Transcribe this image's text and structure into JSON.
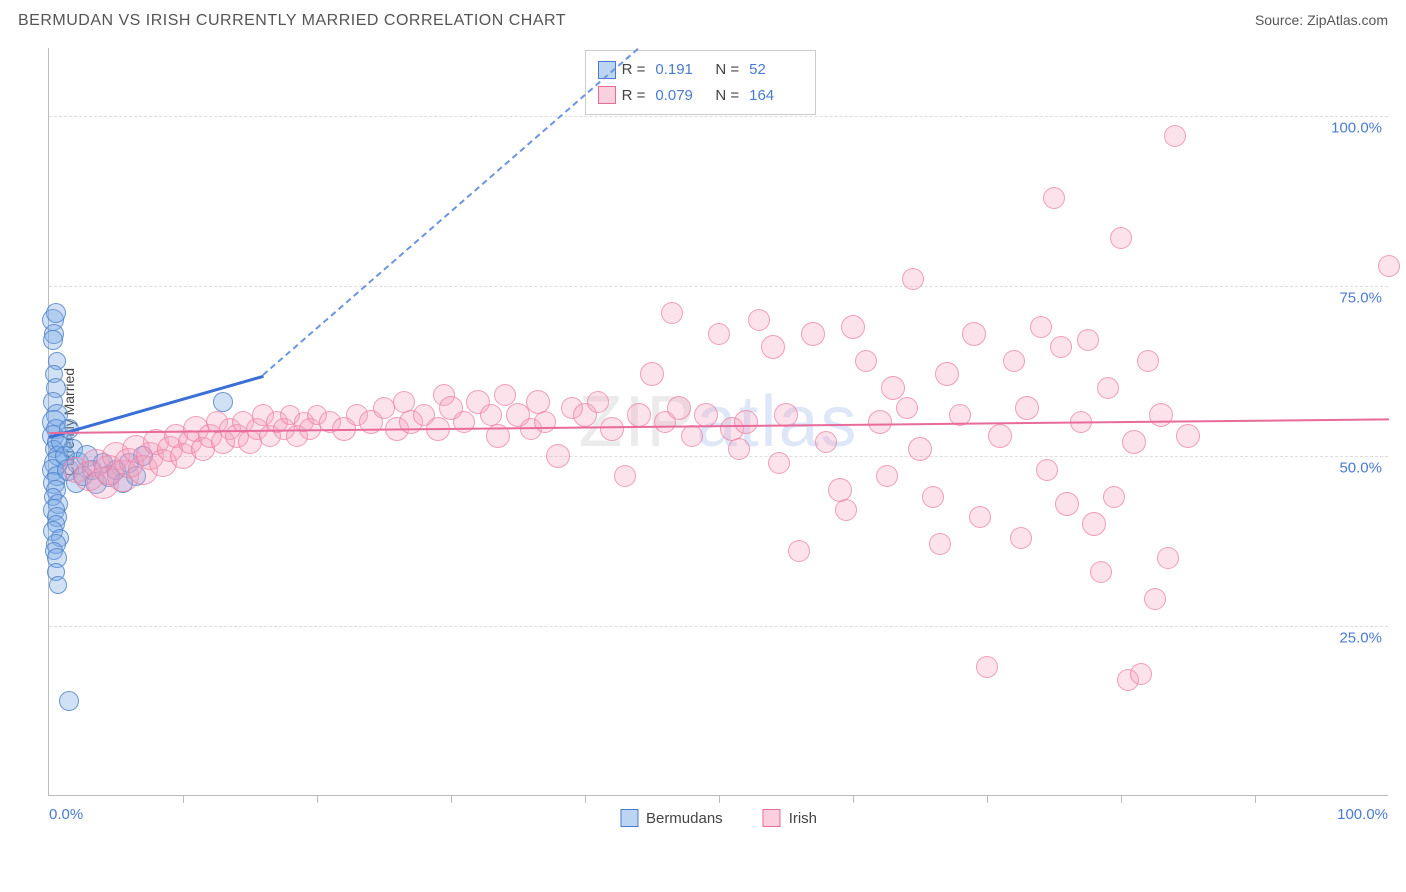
{
  "title": "BERMUDAN VS IRISH CURRENTLY MARRIED CORRELATION CHART",
  "source": "Source: ZipAtlas.com",
  "watermark_parts": [
    "ZIP",
    "atlas"
  ],
  "chart": {
    "type": "scatter",
    "background_color": "#ffffff",
    "grid_color": "#dddddd",
    "border_color": "#bbbbbb",
    "text_color": "#444444",
    "accent_color": "#4a7bd0",
    "title_fontsize": 16,
    "label_fontsize": 14,
    "tick_fontsize": 15,
    "ylabel": "Currently Married",
    "xlim": [
      0,
      100
    ],
    "ylim": [
      0,
      110
    ],
    "ytick_values": [
      25,
      50,
      75,
      100
    ],
    "ytick_labels": [
      "25.0%",
      "50.0%",
      "75.0%",
      "100.0%"
    ],
    "xtick_left": "0.0%",
    "xtick_right": "100.0%",
    "xtick_minor_count": 10,
    "legend_top": {
      "rows": [
        {
          "swatch": "blue",
          "R": "0.191",
          "N": "52"
        },
        {
          "swatch": "pink",
          "R": "0.079",
          "N": "164"
        }
      ]
    },
    "legend_bottom": [
      {
        "swatch": "blue",
        "label": "Bermudans"
      },
      {
        "swatch": "pink",
        "label": "Irish"
      }
    ],
    "series": [
      {
        "name": "Bermudans",
        "color_fill": "rgba(120,170,230,0.35)",
        "color_stroke": "rgba(80,130,200,0.8)",
        "marker_class": "blue",
        "trend_solid": {
          "x1": 0,
          "y1": 53,
          "x2": 16,
          "y2": 62,
          "color": "#3b6fd6",
          "width": 2.5
        },
        "trend_dash": {
          "x1": 16,
          "y1": 62,
          "x2": 44,
          "y2": 110,
          "color": "#6b95e0",
          "dash": true
        },
        "points": [
          {
            "x": 0.3,
            "y": 70,
            "r": 11
          },
          {
            "x": 0.5,
            "y": 71,
            "r": 10
          },
          {
            "x": 0.4,
            "y": 68,
            "r": 10
          },
          {
            "x": 0.3,
            "y": 67,
            "r": 10
          },
          {
            "x": 0.6,
            "y": 64,
            "r": 9
          },
          {
            "x": 0.4,
            "y": 62,
            "r": 9
          },
          {
            "x": 0.5,
            "y": 60,
            "r": 10
          },
          {
            "x": 0.3,
            "y": 58,
            "r": 10
          },
          {
            "x": 0.6,
            "y": 56,
            "r": 11
          },
          {
            "x": 0.4,
            "y": 55,
            "r": 12
          },
          {
            "x": 0.5,
            "y": 54,
            "r": 10
          },
          {
            "x": 0.3,
            "y": 53,
            "r": 11
          },
          {
            "x": 0.6,
            "y": 52,
            "r": 10
          },
          {
            "x": 0.4,
            "y": 51,
            "r": 9
          },
          {
            "x": 0.7,
            "y": 50,
            "r": 10
          },
          {
            "x": 0.5,
            "y": 49,
            "r": 12
          },
          {
            "x": 0.3,
            "y": 48,
            "r": 11
          },
          {
            "x": 0.6,
            "y": 47,
            "r": 10
          },
          {
            "x": 0.4,
            "y": 46,
            "r": 11
          },
          {
            "x": 0.5,
            "y": 45,
            "r": 10
          },
          {
            "x": 0.3,
            "y": 44,
            "r": 9
          },
          {
            "x": 0.7,
            "y": 43,
            "r": 10
          },
          {
            "x": 0.4,
            "y": 42,
            "r": 11
          },
          {
            "x": 0.6,
            "y": 41,
            "r": 10
          },
          {
            "x": 0.5,
            "y": 40,
            "r": 9
          },
          {
            "x": 0.3,
            "y": 39,
            "r": 10
          },
          {
            "x": 0.8,
            "y": 38,
            "r": 9
          },
          {
            "x": 0.5,
            "y": 37,
            "r": 10
          },
          {
            "x": 0.4,
            "y": 36,
            "r": 9
          },
          {
            "x": 0.6,
            "y": 35,
            "r": 10
          },
          {
            "x": 0.5,
            "y": 33,
            "r": 9
          },
          {
            "x": 0.7,
            "y": 31,
            "r": 9
          },
          {
            "x": 1.0,
            "y": 52,
            "r": 11
          },
          {
            "x": 1.2,
            "y": 50,
            "r": 10
          },
          {
            "x": 1.4,
            "y": 48,
            "r": 11
          },
          {
            "x": 1.5,
            "y": 54,
            "r": 10
          },
          {
            "x": 1.8,
            "y": 51,
            "r": 10
          },
          {
            "x": 2.0,
            "y": 46,
            "r": 10
          },
          {
            "x": 2.2,
            "y": 49,
            "r": 11
          },
          {
            "x": 2.5,
            "y": 47,
            "r": 10
          },
          {
            "x": 2.8,
            "y": 50,
            "r": 11
          },
          {
            "x": 3.2,
            "y": 48,
            "r": 10
          },
          {
            "x": 3.5,
            "y": 46,
            "r": 11
          },
          {
            "x": 4.0,
            "y": 49,
            "r": 10
          },
          {
            "x": 4.5,
            "y": 47,
            "r": 11
          },
          {
            "x": 5.0,
            "y": 48,
            "r": 10
          },
          {
            "x": 5.5,
            "y": 46,
            "r": 10
          },
          {
            "x": 6.0,
            "y": 49,
            "r": 10
          },
          {
            "x": 6.5,
            "y": 47,
            "r": 10
          },
          {
            "x": 7.0,
            "y": 50,
            "r": 10
          },
          {
            "x": 13.0,
            "y": 58,
            "r": 10
          },
          {
            "x": 1.5,
            "y": 14,
            "r": 10
          }
        ]
      },
      {
        "name": "Irish",
        "color_fill": "rgba(245,160,190,0.3)",
        "color_stroke": "rgba(235,120,160,0.65)",
        "marker_class": "pink",
        "trend_solid": {
          "x1": 0,
          "y1": 53.5,
          "x2": 100,
          "y2": 55.5,
          "color": "#e86b9a",
          "width": 2
        },
        "points": [
          {
            "x": 2,
            "y": 48,
            "r": 13
          },
          {
            "x": 3,
            "y": 47,
            "r": 15
          },
          {
            "x": 3.5,
            "y": 49,
            "r": 14
          },
          {
            "x": 4,
            "y": 46,
            "r": 16
          },
          {
            "x": 4.5,
            "y": 48,
            "r": 15
          },
          {
            "x": 5,
            "y": 50,
            "r": 14
          },
          {
            "x": 5.5,
            "y": 47,
            "r": 16
          },
          {
            "x": 6,
            "y": 49,
            "r": 15
          },
          {
            "x": 6.5,
            "y": 51,
            "r": 14
          },
          {
            "x": 7,
            "y": 48,
            "r": 15
          },
          {
            "x": 7.5,
            "y": 50,
            "r": 14
          },
          {
            "x": 8,
            "y": 52,
            "r": 13
          },
          {
            "x": 8.5,
            "y": 49,
            "r": 14
          },
          {
            "x": 9,
            "y": 51,
            "r": 13
          },
          {
            "x": 9.5,
            "y": 53,
            "r": 12
          },
          {
            "x": 10,
            "y": 50,
            "r": 13
          },
          {
            "x": 10.5,
            "y": 52,
            "r": 12
          },
          {
            "x": 11,
            "y": 54,
            "r": 13
          },
          {
            "x": 11.5,
            "y": 51,
            "r": 12
          },
          {
            "x": 12,
            "y": 53,
            "r": 12
          },
          {
            "x": 12.5,
            "y": 55,
            "r": 11
          },
          {
            "x": 13,
            "y": 52,
            "r": 12
          },
          {
            "x": 13.5,
            "y": 54,
            "r": 11
          },
          {
            "x": 14,
            "y": 53,
            "r": 12
          },
          {
            "x": 14.5,
            "y": 55,
            "r": 11
          },
          {
            "x": 15,
            "y": 52,
            "r": 12
          },
          {
            "x": 15.5,
            "y": 54,
            "r": 11
          },
          {
            "x": 16,
            "y": 56,
            "r": 11
          },
          {
            "x": 16.5,
            "y": 53,
            "r": 11
          },
          {
            "x": 17,
            "y": 55,
            "r": 11
          },
          {
            "x": 17.5,
            "y": 54,
            "r": 11
          },
          {
            "x": 18,
            "y": 56,
            "r": 10
          },
          {
            "x": 18.5,
            "y": 53,
            "r": 11
          },
          {
            "x": 19,
            "y": 55,
            "r": 10
          },
          {
            "x": 19.5,
            "y": 54,
            "r": 11
          },
          {
            "x": 20,
            "y": 56,
            "r": 10
          },
          {
            "x": 21,
            "y": 55,
            "r": 11
          },
          {
            "x": 22,
            "y": 54,
            "r": 12
          },
          {
            "x": 23,
            "y": 56,
            "r": 11
          },
          {
            "x": 24,
            "y": 55,
            "r": 12
          },
          {
            "x": 25,
            "y": 57,
            "r": 11
          },
          {
            "x": 26,
            "y": 54,
            "r": 12
          },
          {
            "x": 26.5,
            "y": 58,
            "r": 11
          },
          {
            "x": 27,
            "y": 55,
            "r": 12
          },
          {
            "x": 28,
            "y": 56,
            "r": 11
          },
          {
            "x": 29,
            "y": 54,
            "r": 12
          },
          {
            "x": 29.5,
            "y": 59,
            "r": 11
          },
          {
            "x": 30,
            "y": 57,
            "r": 12
          },
          {
            "x": 31,
            "y": 55,
            "r": 11
          },
          {
            "x": 32,
            "y": 58,
            "r": 12
          },
          {
            "x": 33,
            "y": 56,
            "r": 11
          },
          {
            "x": 33.5,
            "y": 53,
            "r": 12
          },
          {
            "x": 34,
            "y": 59,
            "r": 11
          },
          {
            "x": 35,
            "y": 56,
            "r": 12
          },
          {
            "x": 36,
            "y": 54,
            "r": 11
          },
          {
            "x": 36.5,
            "y": 58,
            "r": 12
          },
          {
            "x": 37,
            "y": 55,
            "r": 11
          },
          {
            "x": 38,
            "y": 50,
            "r": 12
          },
          {
            "x": 39,
            "y": 57,
            "r": 11
          },
          {
            "x": 40,
            "y": 56,
            "r": 12
          },
          {
            "x": 41,
            "y": 58,
            "r": 11
          },
          {
            "x": 42,
            "y": 54,
            "r": 12
          },
          {
            "x": 43,
            "y": 47,
            "r": 11
          },
          {
            "x": 44,
            "y": 56,
            "r": 12
          },
          {
            "x": 45,
            "y": 62,
            "r": 12
          },
          {
            "x": 46,
            "y": 55,
            "r": 11
          },
          {
            "x": 46.5,
            "y": 71,
            "r": 11
          },
          {
            "x": 47,
            "y": 57,
            "r": 12
          },
          {
            "x": 48,
            "y": 53,
            "r": 11
          },
          {
            "x": 49,
            "y": 56,
            "r": 12
          },
          {
            "x": 50,
            "y": 68,
            "r": 11
          },
          {
            "x": 51,
            "y": 54,
            "r": 12
          },
          {
            "x": 51.5,
            "y": 51,
            "r": 11
          },
          {
            "x": 52,
            "y": 55,
            "r": 12
          },
          {
            "x": 53,
            "y": 70,
            "r": 11
          },
          {
            "x": 54,
            "y": 66,
            "r": 12
          },
          {
            "x": 54.5,
            "y": 49,
            "r": 11
          },
          {
            "x": 55,
            "y": 56,
            "r": 12
          },
          {
            "x": 56,
            "y": 36,
            "r": 11
          },
          {
            "x": 57,
            "y": 68,
            "r": 12
          },
          {
            "x": 58,
            "y": 52,
            "r": 11
          },
          {
            "x": 59,
            "y": 45,
            "r": 12
          },
          {
            "x": 59.5,
            "y": 42,
            "r": 11
          },
          {
            "x": 60,
            "y": 69,
            "r": 12
          },
          {
            "x": 61,
            "y": 64,
            "r": 11
          },
          {
            "x": 62,
            "y": 55,
            "r": 12
          },
          {
            "x": 62.5,
            "y": 47,
            "r": 11
          },
          {
            "x": 63,
            "y": 60,
            "r": 12
          },
          {
            "x": 64,
            "y": 57,
            "r": 11
          },
          {
            "x": 64.5,
            "y": 76,
            "r": 11
          },
          {
            "x": 65,
            "y": 51,
            "r": 12
          },
          {
            "x": 66,
            "y": 44,
            "r": 11
          },
          {
            "x": 66.5,
            "y": 37,
            "r": 11
          },
          {
            "x": 67,
            "y": 62,
            "r": 12
          },
          {
            "x": 68,
            "y": 56,
            "r": 11
          },
          {
            "x": 69,
            "y": 68,
            "r": 12
          },
          {
            "x": 69.5,
            "y": 41,
            "r": 11
          },
          {
            "x": 70,
            "y": 19,
            "r": 11
          },
          {
            "x": 71,
            "y": 53,
            "r": 12
          },
          {
            "x": 72,
            "y": 64,
            "r": 11
          },
          {
            "x": 72.5,
            "y": 38,
            "r": 11
          },
          {
            "x": 73,
            "y": 57,
            "r": 12
          },
          {
            "x": 74,
            "y": 69,
            "r": 11
          },
          {
            "x": 74.5,
            "y": 48,
            "r": 11
          },
          {
            "x": 75,
            "y": 88,
            "r": 11
          },
          {
            "x": 75.5,
            "y": 66,
            "r": 11
          },
          {
            "x": 76,
            "y": 43,
            "r": 12
          },
          {
            "x": 77,
            "y": 55,
            "r": 11
          },
          {
            "x": 77.5,
            "y": 67,
            "r": 11
          },
          {
            "x": 78,
            "y": 40,
            "r": 12
          },
          {
            "x": 78.5,
            "y": 33,
            "r": 11
          },
          {
            "x": 79,
            "y": 60,
            "r": 11
          },
          {
            "x": 79.5,
            "y": 44,
            "r": 11
          },
          {
            "x": 80,
            "y": 82,
            "r": 11
          },
          {
            "x": 80.5,
            "y": 17,
            "r": 11
          },
          {
            "x": 81,
            "y": 52,
            "r": 12
          },
          {
            "x": 81.5,
            "y": 18,
            "r": 11
          },
          {
            "x": 82,
            "y": 64,
            "r": 11
          },
          {
            "x": 82.5,
            "y": 29,
            "r": 11
          },
          {
            "x": 83,
            "y": 56,
            "r": 12
          },
          {
            "x": 83.5,
            "y": 35,
            "r": 11
          },
          {
            "x": 84,
            "y": 97,
            "r": 11
          },
          {
            "x": 85,
            "y": 53,
            "r": 12
          },
          {
            "x": 100,
            "y": 78,
            "r": 11
          }
        ]
      }
    ]
  }
}
